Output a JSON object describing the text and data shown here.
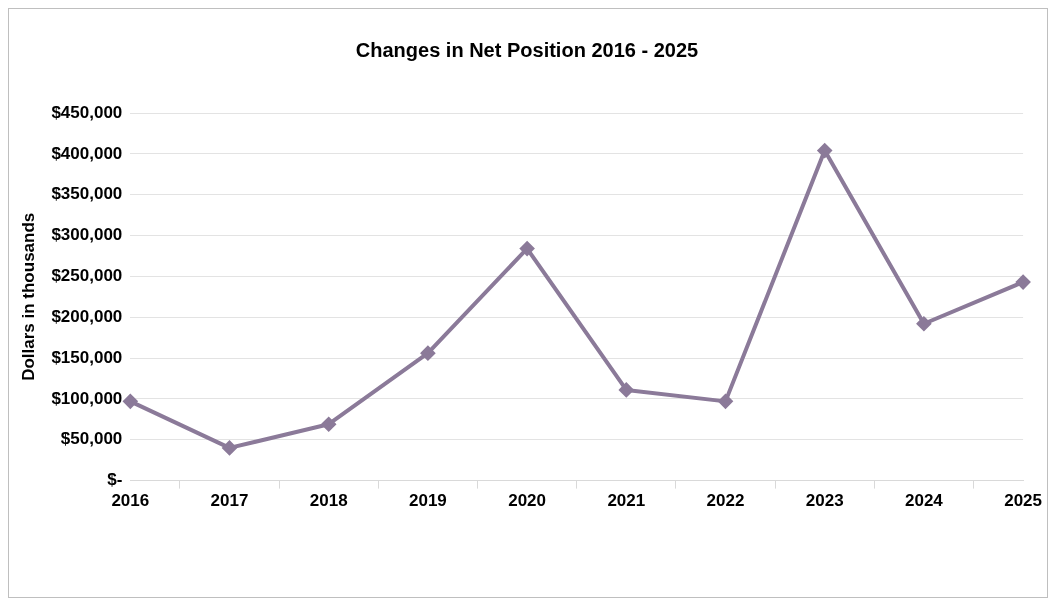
{
  "chart_data": {
    "type": "line",
    "title": "Changes in Net Position 2016 - 2025",
    "ylabel": "Dollars in thousands",
    "categories": [
      "2016",
      "2017",
      "2018",
      "2019",
      "2020",
      "2021",
      "2022",
      "2023",
      "2024",
      "2025"
    ],
    "series": [
      {
        "color": "#8b7a99",
        "values": [
          97000,
          40000,
          69000,
          156000,
          284000,
          111000,
          97000,
          404000,
          192000,
          243000
        ]
      }
    ],
    "ylim": [
      0,
      450000
    ],
    "yticks": [
      {
        "value": 0,
        "label": "$-"
      },
      {
        "value": 50000,
        "label": "$50,000"
      },
      {
        "value": 100000,
        "label": "$100,000"
      },
      {
        "value": 150000,
        "label": "$150,000"
      },
      {
        "value": 200000,
        "label": "$200,000"
      },
      {
        "value": 250000,
        "label": "$250,000"
      },
      {
        "value": 300000,
        "label": "$300,000"
      },
      {
        "value": 350000,
        "label": "$350,000"
      },
      {
        "value": 400000,
        "label": "$400,000"
      },
      {
        "value": 450000,
        "label": "$450,000"
      }
    ],
    "grid": "y",
    "marker": "diamond",
    "line_style": "solid",
    "legend": false
  }
}
